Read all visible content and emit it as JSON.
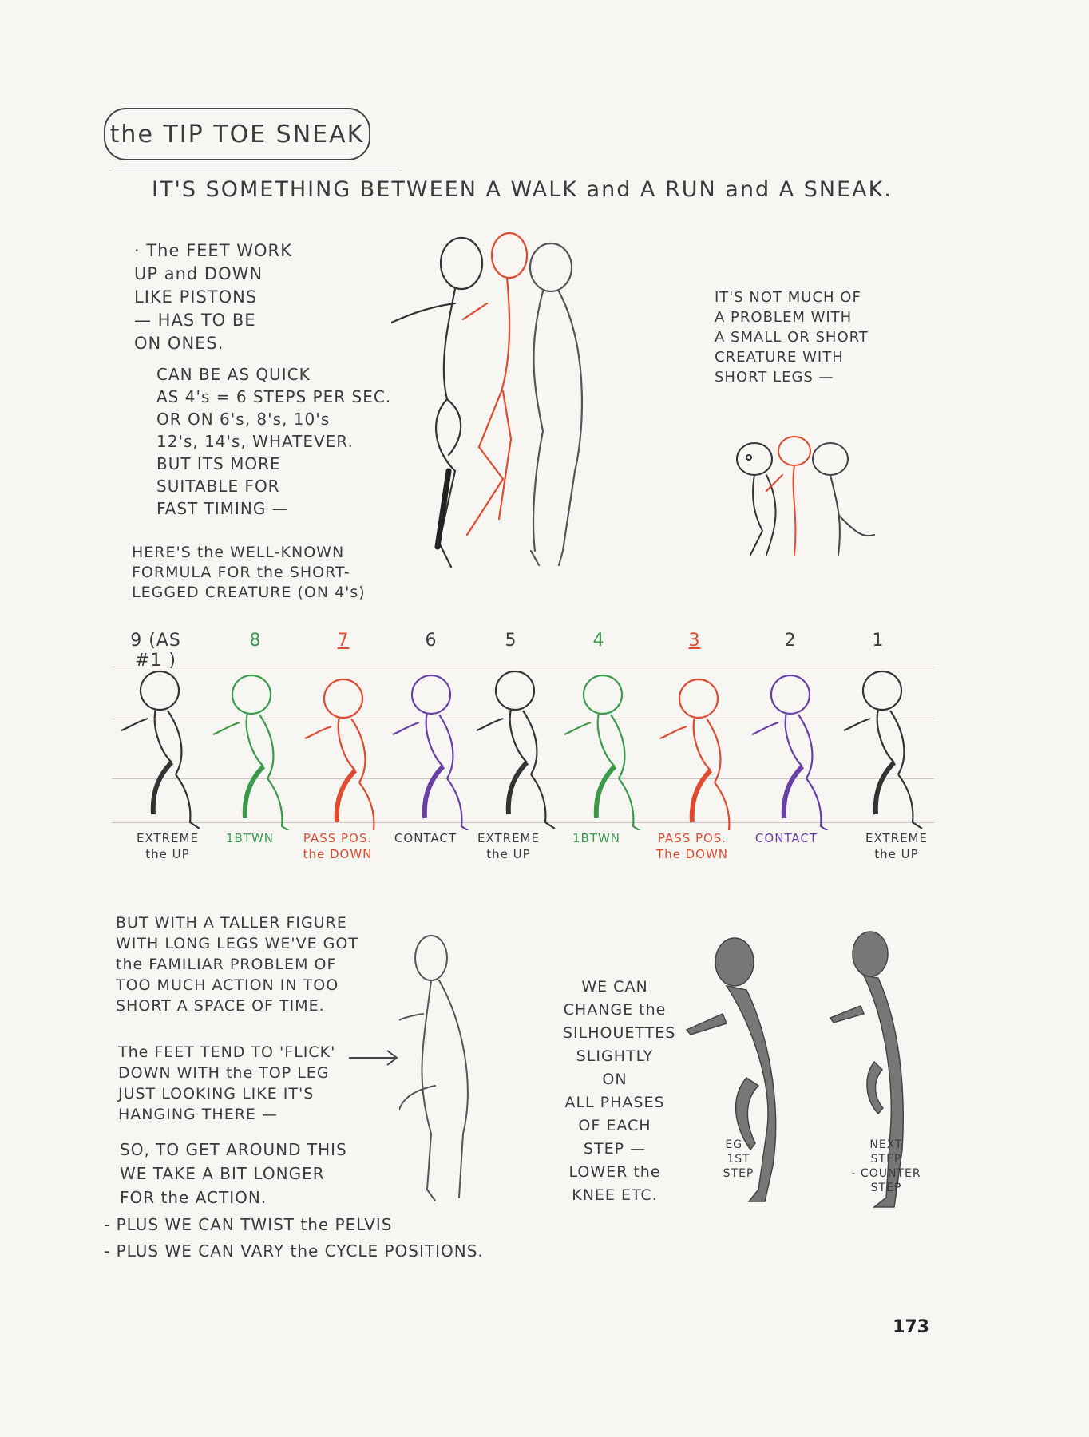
{
  "page": {
    "title": "the TIP TOE SNEAK",
    "subtitle": "IT'S SOMETHING BETWEEN A WALK and A RUN and A SNEAK.",
    "page_number": "173"
  },
  "notes": {
    "feet": "· The FEET WORK\n  UP and DOWN\n  LIKE PISTONS\n  — HAS TO BE\n     ON ONES.",
    "quick": "CAN BE AS QUICK\nAS 4's = 6 STEPS PER SEC.\nOR ON 6's, 8's, 10's\n12's, 14's, WHATEVER.\nBUT ITS MORE\nSUITABLE FOR\nFAST TIMING —",
    "formula": "HERE'S the WELL-KNOWN\nFORMULA FOR the SHORT-\nLEGGED CREATURE (ON 4's)",
    "short_creature": "IT'S NOT MUCH OF\nA PROBLEM WITH\nA SMALL OR SHORT\nCREATURE WITH\nSHORT LEGS —",
    "taller": "BUT WITH A TALLER FIGURE\nWITH LONG LEGS WE'VE GOT\nthe FAMILIAR PROBLEM OF\nTOO MUCH ACTION IN TOO\nSHORT A SPACE OF TIME.",
    "flick": "The FEET TEND TO 'FLICK'\nDOWN WITH the TOP LEG\nJUST LOOKING LIKE IT'S\nHANGING THERE —",
    "longer": "SO, TO GET AROUND THIS\nWE TAKE A BIT LONGER\nFOR the ACTION.",
    "plus1": "- PLUS WE CAN TWIST the PELVIS",
    "plus2": "- PLUS WE CAN VARY the CYCLE POSITIONS.",
    "silhouettes": "WE CAN\nCHANGE the\nSILHOUETTES\nSLIGHTLY ON\nALL PHASES\nOF EACH\nSTEP —\nLOWER the\nKNEE ETC.",
    "eg": "EG -\n1ST\nSTEP",
    "next": "NEXT\nSTEP\n- COUNTER\nSTEP"
  },
  "frames": [
    {
      "num": "9 (AS #1 )",
      "label": "EXTREME\nthe UP",
      "color": "#333333"
    },
    {
      "num": "8",
      "label": "1BTWN",
      "color": "#3a9a4a"
    },
    {
      "num": "7",
      "label": "PASS POS.\nthe DOWN",
      "color": "#e04a2e"
    },
    {
      "num": "6",
      "label": "CONTACT",
      "color": "#6a3fa8"
    },
    {
      "num": "5",
      "label": "EXTREME\nthe UP",
      "color": "#333333"
    },
    {
      "num": "4",
      "label": "1BTWN",
      "color": "#3a9a4a"
    },
    {
      "num": "3",
      "label": "PASS POS.\nThe DOWN",
      "color": "#e04a2e"
    },
    {
      "num": "2",
      "label": "CONTACT",
      "color": "#6a3fa8"
    },
    {
      "num": "1",
      "label": "EXTREME\nthe UP",
      "color": "#333333"
    }
  ]
}
